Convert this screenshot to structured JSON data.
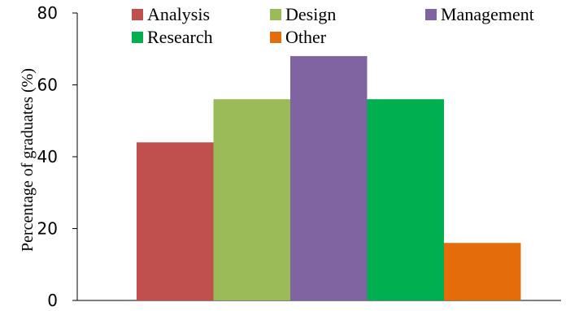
{
  "chart_data": {
    "type": "bar",
    "title": "",
    "xlabel": "",
    "ylabel": "Percentage of graduates (%)",
    "ylim": [
      0,
      80
    ],
    "yticks": [
      0,
      20,
      40,
      60,
      80
    ],
    "grid": false,
    "legend_position": "top",
    "series": [
      {
        "name": "Analysis",
        "value": 44,
        "color": "#C0504D"
      },
      {
        "name": "Design",
        "value": 56,
        "color": "#9BBB59"
      },
      {
        "name": "Management",
        "value": 68,
        "color": "#8064A2"
      },
      {
        "name": "Research",
        "value": 56,
        "color": "#00B050"
      },
      {
        "name": "Other",
        "value": 16,
        "color": "#E46C0A"
      }
    ]
  }
}
